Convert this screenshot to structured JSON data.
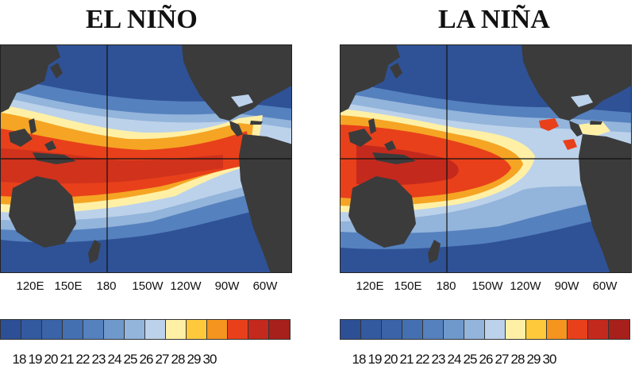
{
  "panels": [
    {
      "title": "EL NIÑO",
      "longitudes": [
        "120E",
        "150E",
        "180",
        "150W",
        "120W",
        "90W",
        "60W"
      ]
    },
    {
      "title": "LA NIÑA",
      "longitudes": [
        "120E",
        "150E",
        "180",
        "150W",
        "120W",
        "90W",
        "60W"
      ]
    }
  ],
  "colorbar": {
    "labels": [
      "18",
      "19",
      "20",
      "21",
      "22",
      "23",
      "24",
      "25",
      "26",
      "27",
      "28",
      "29",
      "30"
    ],
    "colors": [
      "#2d4f96",
      "#33599f",
      "#3a63a8",
      "#4470b2",
      "#5581be",
      "#6f98cb",
      "#93b4db",
      "#bcd2ea",
      "#fff0a6",
      "#ffc93c",
      "#f5941e",
      "#e8401b",
      "#c4291d",
      "#a7201b"
    ]
  },
  "colors": {
    "ocean_cold": "#2f5296",
    "ocean_mid": "#6f98cb",
    "ocean_cool": "#bcd2ea",
    "ocean_warm1": "#fff0a6",
    "ocean_warm2": "#f5a523",
    "ocean_warm3": "#e8401b",
    "ocean_warm4": "#b8261c",
    "land": "#3b3b3b"
  }
}
